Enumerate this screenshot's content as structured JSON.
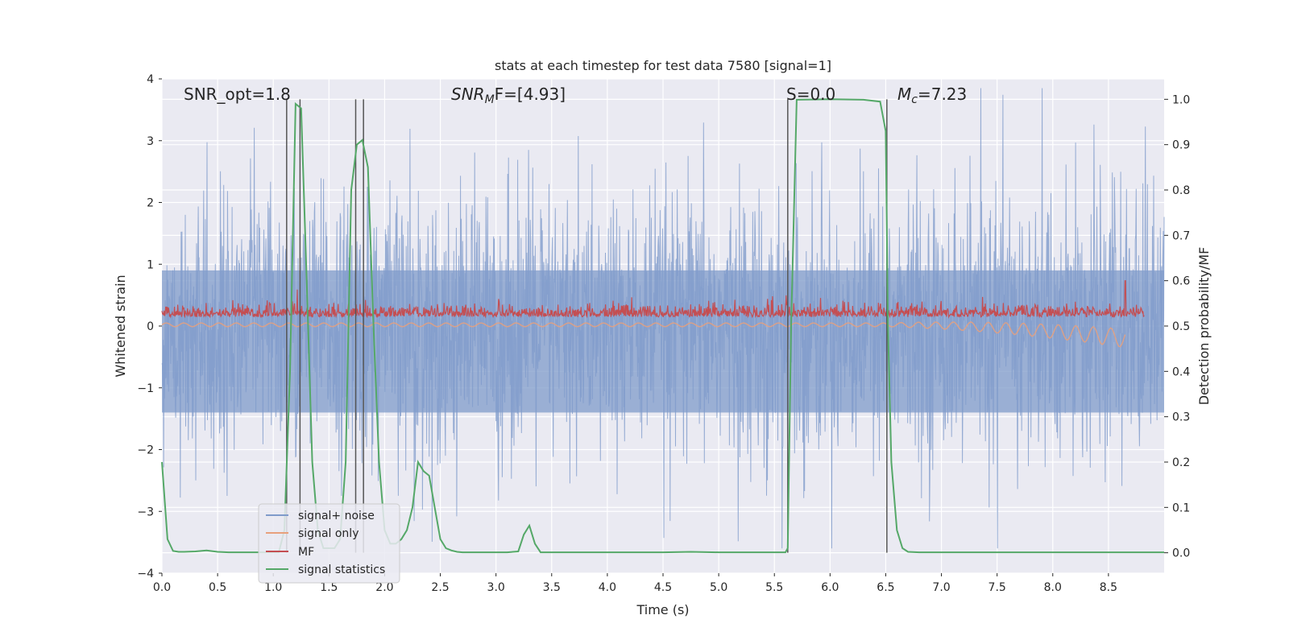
{
  "chart_data": {
    "type": "line",
    "title": "stats at each timestep for test data 7580 [signal=1]",
    "xlabel": "Time (s)",
    "ylabel": "Whitened strain",
    "y2label": "Detection probability/MF",
    "xlim": [
      0.0,
      9.0
    ],
    "ylim": [
      -4.0,
      4.0
    ],
    "y2lim": [
      -0.045,
      1.045
    ],
    "x_ticks": [
      "0.0",
      "0.5",
      "1.0",
      "1.5",
      "2.0",
      "2.5",
      "3.0",
      "3.5",
      "4.0",
      "4.5",
      "5.0",
      "5.5",
      "6.0",
      "6.5",
      "7.0",
      "7.5",
      "8.0",
      "8.5"
    ],
    "x_tick_values": [
      0.0,
      0.5,
      1.0,
      1.5,
      2.0,
      2.5,
      3.0,
      3.5,
      4.0,
      4.5,
      5.0,
      5.5,
      6.0,
      6.5,
      7.0,
      7.5,
      8.0,
      8.5
    ],
    "y_ticks": [
      "4",
      "3",
      "2",
      "1",
      "0",
      "−1",
      "−2",
      "−3",
      "−4"
    ],
    "y_tick_values": [
      4,
      3,
      2,
      1,
      0,
      -1,
      -2,
      -3,
      -4
    ],
    "y2_ticks": [
      "1.0",
      "0.9",
      "0.8",
      "0.7",
      "0.6",
      "0.5",
      "0.4",
      "0.3",
      "0.2",
      "0.1",
      "0.0"
    ],
    "y2_tick_values": [
      1.0,
      0.9,
      0.8,
      0.7,
      0.6,
      0.5,
      0.4,
      0.3,
      0.2,
      0.1,
      0.0
    ],
    "annotations": {
      "snr_opt": "SNR_opt=1.8",
      "snr_mf": "SNR",
      "snr_mf_sub": "M",
      "snr_mf_rest": "F=[4.93]",
      "s_value": "S=0.0",
      "mc_prefix": "M",
      "mc_sub": "c",
      "mc_rest": "=7.23"
    },
    "legend": {
      "position": "lower-left",
      "entries": [
        {
          "label": "signal+ noise",
          "color": "#7f9bca"
        },
        {
          "label": "signal only",
          "color": "#e8a07c"
        },
        {
          "label": "MF",
          "color": "#c44e52"
        },
        {
          "label": "signal statistics",
          "color": "#55a868"
        }
      ]
    },
    "vertical_lines": [
      1.12,
      1.24,
      1.74,
      1.81,
      5.62,
      6.51
    ],
    "series": [
      {
        "name": "signal statistics",
        "axis": "right",
        "color": "#55a868",
        "x": [
          0.0,
          0.05,
          0.1,
          0.15,
          0.2,
          0.3,
          0.4,
          0.5,
          0.6,
          0.7,
          0.8,
          0.9,
          1.0,
          1.05,
          1.1,
          1.15,
          1.2,
          1.25,
          1.3,
          1.35,
          1.4,
          1.45,
          1.5,
          1.55,
          1.6,
          1.65,
          1.7,
          1.75,
          1.8,
          1.85,
          1.9,
          1.95,
          2.0,
          2.05,
          2.1,
          2.15,
          2.2,
          2.25,
          2.3,
          2.35,
          2.4,
          2.45,
          2.5,
          2.55,
          2.6,
          2.65,
          2.7,
          2.8,
          2.9,
          3.0,
          3.1,
          3.2,
          3.25,
          3.3,
          3.35,
          3.4,
          3.5,
          4.0,
          4.5,
          4.75,
          5.0,
          5.5,
          5.6,
          5.62,
          5.65,
          5.7,
          6.0,
          6.3,
          6.45,
          6.5,
          6.52,
          6.55,
          6.6,
          6.65,
          6.7,
          6.8,
          7.0,
          8.0,
          9.0
        ],
        "y": [
          0.2,
          0.03,
          0.004,
          0.002,
          0.002,
          0.003,
          0.005,
          0.002,
          0.001,
          0.001,
          0.001,
          0.001,
          0.001,
          0.001,
          0.05,
          0.4,
          0.99,
          0.98,
          0.6,
          0.2,
          0.05,
          0.01,
          0.01,
          0.01,
          0.03,
          0.2,
          0.8,
          0.9,
          0.91,
          0.85,
          0.5,
          0.2,
          0.05,
          0.02,
          0.02,
          0.03,
          0.05,
          0.1,
          0.2,
          0.18,
          0.17,
          0.1,
          0.03,
          0.01,
          0.005,
          0.002,
          0.001,
          0.001,
          0.001,
          0.001,
          0.001,
          0.003,
          0.04,
          0.06,
          0.02,
          0.001,
          0.001,
          0.001,
          0.001,
          0.002,
          0.001,
          0.001,
          0.001,
          0.01,
          0.5,
          0.999,
          1.0,
          0.999,
          0.995,
          0.93,
          0.5,
          0.2,
          0.05,
          0.01,
          0.002,
          0.001,
          0.001,
          0.001,
          0.001
        ]
      },
      {
        "name": "signal+ noise",
        "axis": "left",
        "color": "#7f9bca",
        "description_points": "dense noise envelope, roughly between -3.5 and 3.8"
      },
      {
        "name": "MF",
        "axis": "right",
        "color": "#c44e52",
        "description_points": "noisy band around 0.52 with spike near 0.6 at 8.65s"
      },
      {
        "name": "signal only",
        "axis": "left",
        "color": "#e8a07c",
        "description_points": "near zero, slight negative drift after 6.5s down to about -0.2 at 8.65s"
      }
    ]
  }
}
